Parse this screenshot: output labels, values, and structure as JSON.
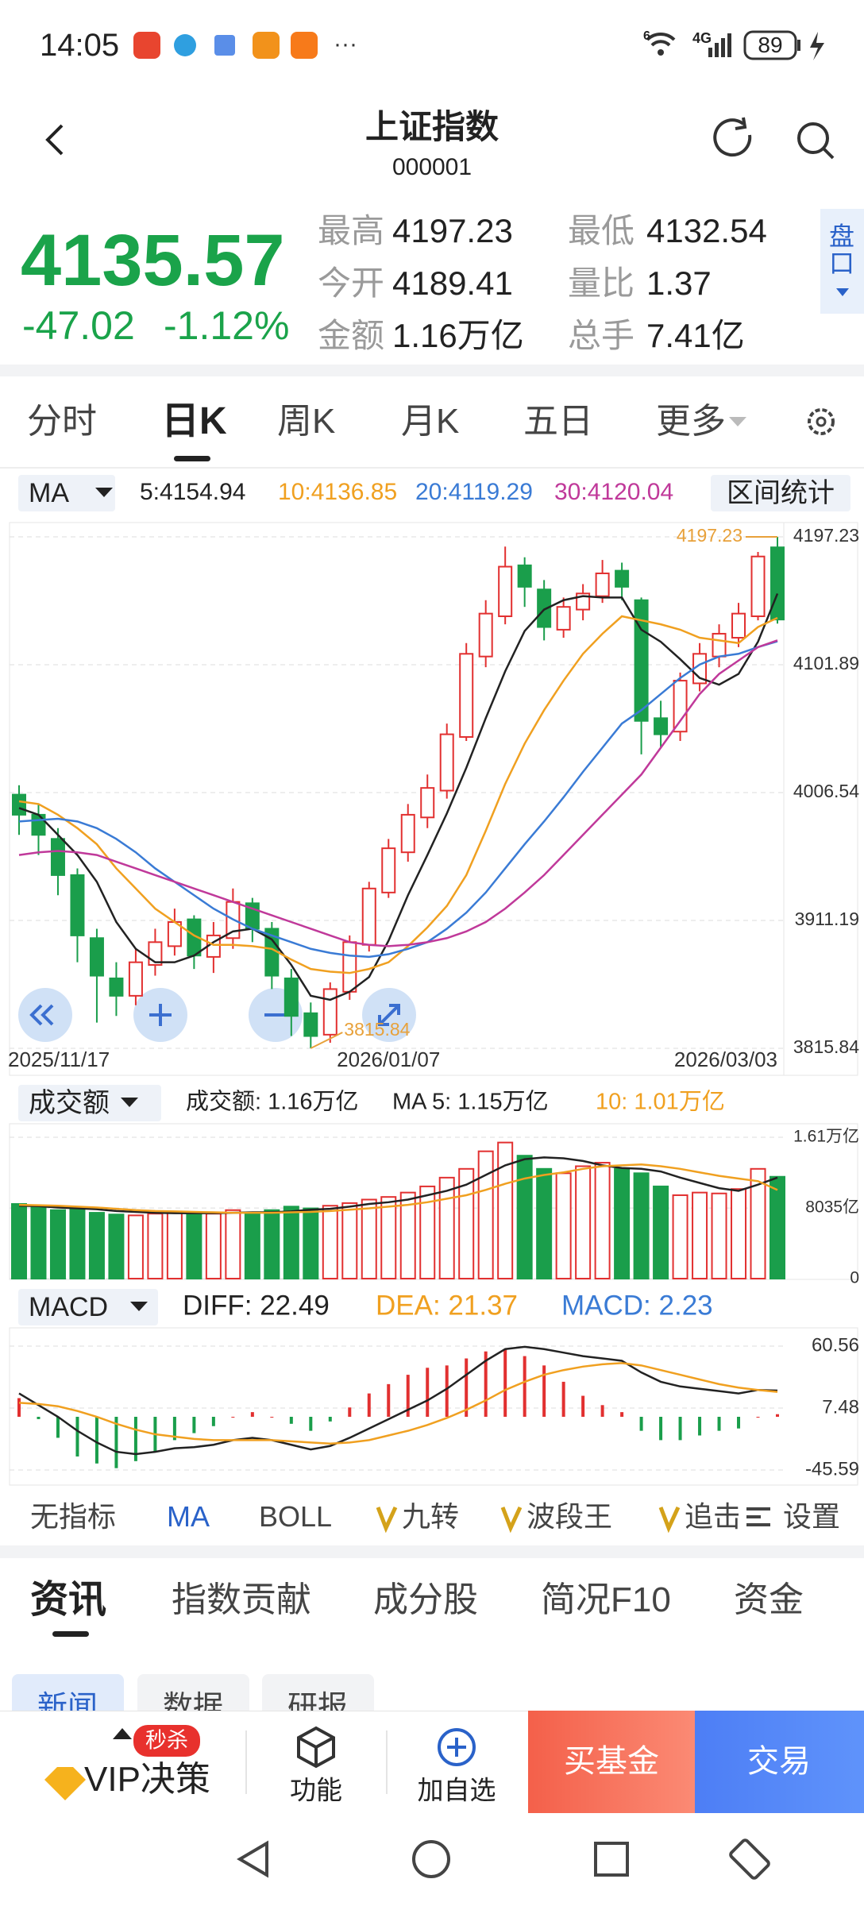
{
  "status_bar": {
    "time": "14:05",
    "wifi_badge": "6",
    "network": "4G",
    "battery": "89"
  },
  "header": {
    "title": "上证指数",
    "code": "000001"
  },
  "quote": {
    "price": "4135.57",
    "change": "-47.02",
    "change_pct": "-1.12%",
    "stats": [
      {
        "label": "最高",
        "value": "4197.23"
      },
      {
        "label": "最低",
        "value": "4132.54"
      },
      {
        "label": "今开",
        "value": "4189.41"
      },
      {
        "label": "量比",
        "value": "1.37"
      },
      {
        "label": "金额",
        "value": "1.16万亿"
      },
      {
        "label": "总手",
        "value": "7.41亿"
      }
    ],
    "side_button": "盘口"
  },
  "tabs": [
    "分时",
    "日K",
    "周K",
    "月K",
    "五日",
    "更多"
  ],
  "chart_data": [
    {
      "type": "candlestick",
      "title": "MA",
      "button": "区间统计",
      "categories": [
        "2025/11/17",
        null,
        null,
        null,
        null,
        null,
        null,
        null,
        null,
        null,
        null,
        null,
        null,
        null,
        null,
        null,
        null,
        null,
        null,
        "2026/01/07",
        null,
        null,
        null,
        null,
        null,
        null,
        null,
        null,
        null,
        null,
        null,
        null,
        null,
        null,
        null,
        null,
        null,
        null,
        null,
        "2026/03/03"
      ],
      "candles": [
        [
          4005,
          3990,
          4012,
          3975
        ],
        [
          3990,
          3975,
          3998,
          3960
        ],
        [
          3972,
          3945,
          3980,
          3930
        ],
        [
          3945,
          3900,
          3950,
          3880
        ],
        [
          3898,
          3870,
          3905,
          3835
        ],
        [
          3868,
          3855,
          3880,
          3840
        ],
        [
          3855,
          3880,
          3890,
          3848
        ],
        [
          3878,
          3895,
          3905,
          3870
        ],
        [
          3892,
          3910,
          3920,
          3885
        ],
        [
          3912,
          3885,
          3915,
          3875
        ],
        [
          3884,
          3900,
          3910,
          3872
        ],
        [
          3898,
          3925,
          3935,
          3890
        ],
        [
          3924,
          3905,
          3928,
          3895
        ],
        [
          3905,
          3870,
          3910,
          3860
        ],
        [
          3868,
          3840,
          3875,
          3825
        ],
        [
          3842,
          3825,
          3850,
          3815.84
        ],
        [
          3826,
          3860,
          3865,
          3820
        ],
        [
          3858,
          3895,
          3900,
          3852
        ],
        [
          3893,
          3935,
          3940,
          3888
        ],
        [
          3932,
          3965,
          3972,
          3928
        ],
        [
          3962,
          3990,
          3998,
          3955
        ],
        [
          3988,
          4010,
          4020,
          3980
        ],
        [
          4008,
          4050,
          4058,
          4002
        ],
        [
          4048,
          4110,
          4118,
          4045
        ],
        [
          4108,
          4140,
          4150,
          4100
        ],
        [
          4138,
          4175,
          4190,
          4132
        ],
        [
          4176,
          4160,
          4182,
          4145
        ],
        [
          4158,
          4130,
          4165,
          4120
        ],
        [
          4128,
          4145,
          4152,
          4122
        ],
        [
          4143,
          4155,
          4162,
          4135
        ],
        [
          4153,
          4170,
          4180,
          4148
        ],
        [
          4172,
          4160,
          4178,
          4150
        ],
        [
          4150,
          4060,
          4152,
          4035
        ],
        [
          4062,
          4050,
          4075,
          4040
        ],
        [
          4052,
          4090,
          4096,
          4045
        ],
        [
          4088,
          4110,
          4118,
          4082
        ],
        [
          4108,
          4125,
          4132,
          4100
        ],
        [
          4122,
          4140,
          4148,
          4115
        ],
        [
          4138,
          4182.59,
          4186,
          4135
        ],
        [
          4189.41,
          4135.57,
          4197.23,
          4132.54
        ]
      ],
      "up_color": "#e23030",
      "down_color": "#1a9e4b",
      "series": [
        {
          "name": "5:4154.94",
          "color": "#222222",
          "values": [
            3995,
            3990,
            3975,
            3960,
            3940,
            3910,
            3890,
            3880,
            3880,
            3885,
            3895,
            3903,
            3905,
            3897,
            3878,
            3855,
            3852,
            3858,
            3869,
            3896,
            3930,
            3960,
            3991,
            4025,
            4062,
            4097,
            4127,
            4143,
            4150,
            4153,
            4152,
            4152,
            4128,
            4119,
            4106,
            4092,
            4087,
            4095,
            4119,
            4154.94
          ]
        },
        {
          "name": "10:4136.85",
          "color": "#f0a020",
          "values": [
            4000,
            3998,
            3990,
            3980,
            3968,
            3950,
            3935,
            3920,
            3910,
            3900,
            3893,
            3893,
            3892,
            3890,
            3882,
            3875,
            3873,
            3872,
            3875,
            3880,
            3892,
            3906,
            3922,
            3945,
            3978,
            4013,
            4043,
            4068,
            4090,
            4110,
            4125,
            4138,
            4135,
            4132,
            4128,
            4122,
            4120,
            4118,
            4130,
            4136.85
          ]
        },
        {
          "name": "20:4119.29",
          "color": "#3a7bd5",
          "values": [
            3985,
            3986,
            3987,
            3985,
            3980,
            3972,
            3962,
            3950,
            3940,
            3930,
            3920,
            3912,
            3905,
            3900,
            3895,
            3890,
            3887,
            3885,
            3884,
            3886,
            3890,
            3895,
            3905,
            3917,
            3932,
            3950,
            3968,
            3985,
            4003,
            4022,
            4040,
            4058,
            4068,
            4080,
            4092,
            4102,
            4108,
            4110,
            4115,
            4119.29
          ]
        },
        {
          "name": "30:4120.04",
          "color": "#c0399a",
          "values": [
            3960,
            3962,
            3963,
            3962,
            3960,
            3955,
            3950,
            3945,
            3940,
            3935,
            3930,
            3925,
            3920,
            3915,
            3910,
            3905,
            3900,
            3895,
            3893,
            3892,
            3893,
            3895,
            3898,
            3903,
            3910,
            3920,
            3932,
            3945,
            3960,
            3975,
            3990,
            4005,
            4020,
            4040,
            4060,
            4080,
            4095,
            4105,
            4115,
            4120.04
          ]
        }
      ],
      "high_label": "4197.23",
      "low_label": "3815.84",
      "ylim": [
        3815.84,
        4197.23
      ],
      "yticks": [
        4197.23,
        4101.89,
        4006.54,
        3911.19,
        3815.84
      ],
      "grid": true
    },
    {
      "type": "volume",
      "title": "成交额",
      "summary": "成交额: 1.16万亿",
      "values": [
        8500,
        8200,
        7800,
        7900,
        7500,
        7300,
        7200,
        7400,
        7600,
        7300,
        7400,
        7800,
        7500,
        7800,
        8200,
        8000,
        8300,
        8600,
        9000,
        9300,
        9800,
        10500,
        11500,
        12500,
        14500,
        15500,
        14000,
        12500,
        12000,
        12800,
        13200,
        12500,
        12000,
        10500,
        9500,
        9800,
        9700,
        10200,
        12500,
        11600
      ],
      "series": [
        {
          "name": "MA 5: 1.15万亿",
          "color": "#222222",
          "values": [
            8300,
            8250,
            8100,
            8000,
            7900,
            7700,
            7600,
            7500,
            7450,
            7450,
            7450,
            7500,
            7550,
            7550,
            7650,
            7850,
            7950,
            8200,
            8500,
            8700,
            9000,
            9500,
            10000,
            10700,
            11800,
            12900,
            13600,
            13800,
            13700,
            13400,
            12900,
            12600,
            12500,
            12200,
            11500,
            10900,
            10300,
            10000,
            10700,
            11500
          ]
        },
        {
          "name": "10: 1.01万亿",
          "color": "#f0a020",
          "values": [
            8400,
            8350,
            8300,
            8200,
            8100,
            7950,
            7800,
            7700,
            7650,
            7600,
            7550,
            7500,
            7500,
            7500,
            7550,
            7600,
            7700,
            7850,
            8000,
            8200,
            8400,
            8700,
            9100,
            9500,
            10100,
            10800,
            11400,
            11800,
            12100,
            12500,
            12800,
            12900,
            13000,
            12800,
            12500,
            12100,
            11700,
            11400,
            11100,
            10100
          ]
        }
      ],
      "ylim": [
        0,
        16100
      ],
      "yticks": [
        {
          "value": 16100,
          "label": "1.61万亿"
        },
        {
          "value": 8035,
          "label": "8035亿"
        },
        0
      ],
      "grid": true
    },
    {
      "type": "macd",
      "title": "MACD",
      "series": [
        {
          "name": "DIFF: 22.49",
          "color": "#222222",
          "values": [
            20,
            10,
            0,
            -12,
            -22,
            -30,
            -32,
            -30,
            -27,
            -26,
            -24,
            -20,
            -18,
            -20,
            -24,
            -28,
            -25,
            -18,
            -10,
            -2,
            6,
            14,
            24,
            36,
            48,
            58,
            60,
            58,
            55,
            52,
            50,
            48,
            38,
            30,
            26,
            24,
            22,
            20,
            23,
            22.49
          ]
        },
        {
          "name": "DEA: 21.37",
          "color": "#f0a020",
          "values": [
            12,
            11,
            9,
            5,
            0,
            -6,
            -11,
            -15,
            -17,
            -19,
            -20,
            -20,
            -20,
            -20,
            -21,
            -22,
            -23,
            -22,
            -20,
            -16,
            -12,
            -7,
            -1,
            6,
            14,
            23,
            30,
            36,
            40,
            43,
            45,
            46,
            44,
            40,
            36,
            32,
            28,
            25,
            23,
            21.37
          ]
        }
      ],
      "histogram": {
        "name": "MACD: 2.23",
        "color": "#3a7bd5",
        "pos_color": "#e23030",
        "neg_color": "#1a9e4b",
        "values": [
          16,
          -2,
          -18,
          -34,
          -40,
          -44,
          -38,
          -30,
          -20,
          -14,
          -8,
          0,
          4,
          0,
          -6,
          -12,
          -4,
          8,
          20,
          28,
          36,
          42,
          44,
          50,
          56,
          58,
          52,
          44,
          30,
          18,
          10,
          4,
          -12,
          -20,
          -20,
          -16,
          -12,
          -10,
          0,
          2.23
        ]
      },
      "ylim": [
        -45.59,
        60.56
      ],
      "yticks": [
        60.56,
        7.48,
        -45.59
      ],
      "grid": true
    }
  ],
  "indicators": [
    "无指标",
    "MA",
    "BOLL",
    "九转",
    "波段王",
    "追击",
    "设置"
  ],
  "section_tabs": [
    "资讯",
    "指数贡献",
    "成分股",
    "简况F10",
    "资金"
  ],
  "sub_tabs": [
    "新闻",
    "数据",
    "研报"
  ],
  "bottom_bar": {
    "vip": "VIP决策",
    "badge": "秒杀",
    "function": "功能",
    "watchlist": "加自选",
    "buy_fund": "买基金",
    "trade": "交易"
  }
}
